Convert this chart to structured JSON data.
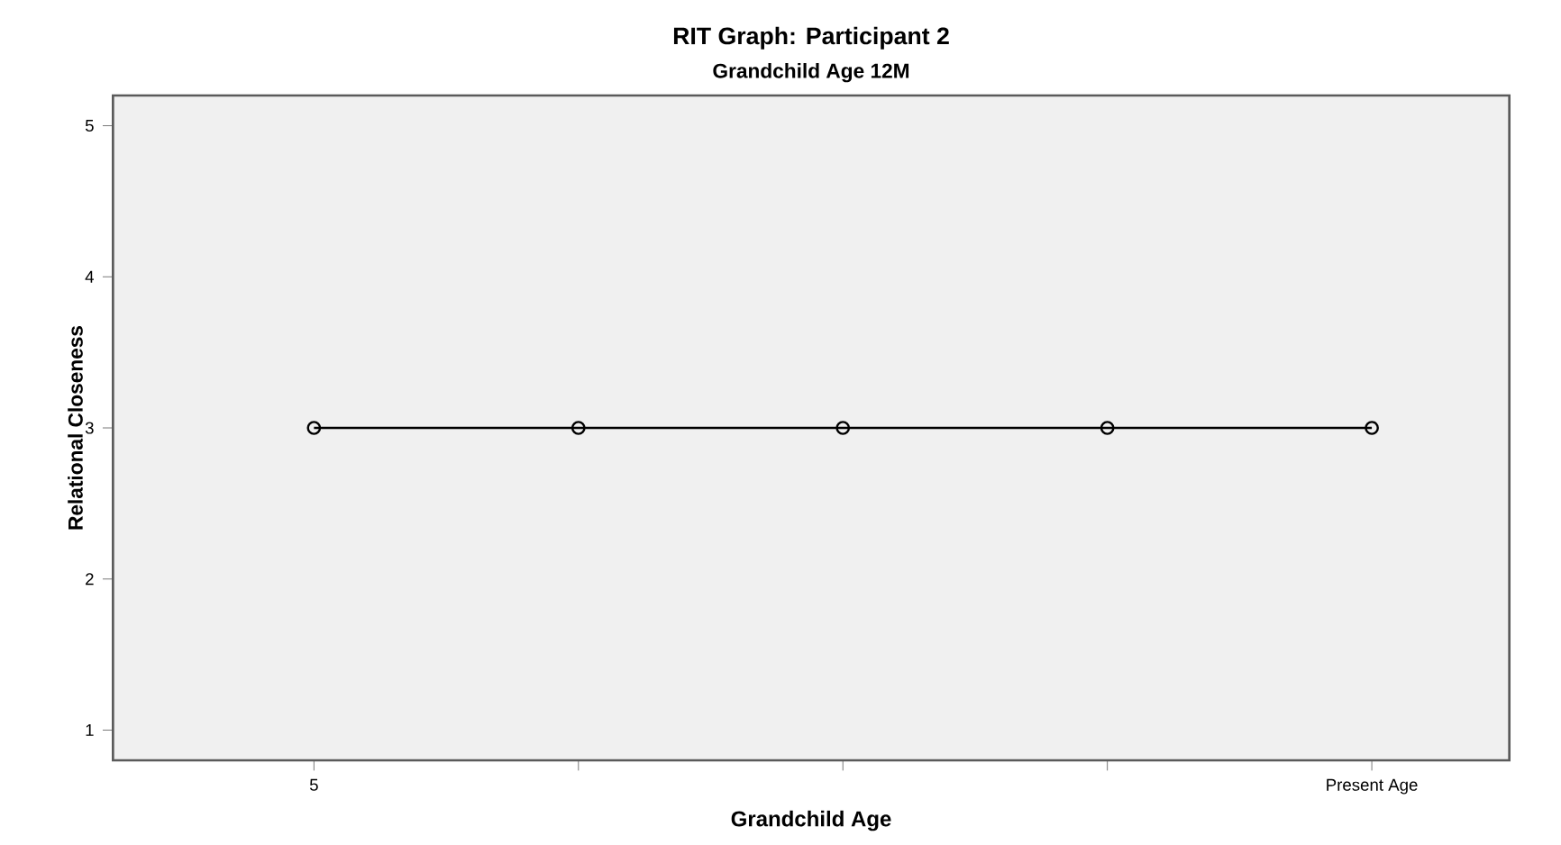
{
  "chart_data": {
    "type": "line",
    "title": "RIT Graph: Participant 2",
    "subtitle": "Grandchild Age 12M",
    "xlabel": "Grandchild Age",
    "ylabel": "Relational Closeness",
    "categories": [
      "5",
      null,
      null,
      null,
      "Present Age"
    ],
    "series": [
      {
        "color": "#000000",
        "values": [
          3,
          3,
          3,
          3,
          3
        ]
      }
    ],
    "ylim": [
      0.8,
      5.2
    ],
    "yticks": [
      1,
      2,
      3,
      4,
      5
    ],
    "grid": false,
    "marker": "circle",
    "line_style": "solid"
  }
}
